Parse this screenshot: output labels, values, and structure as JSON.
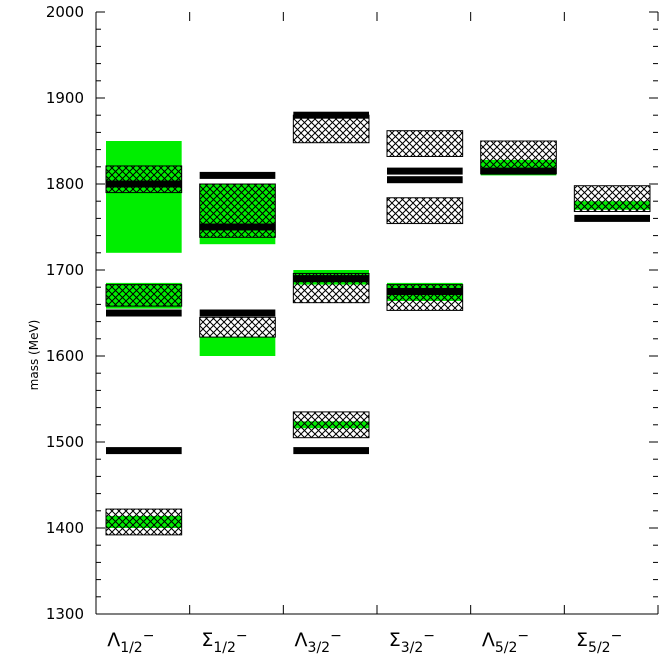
{
  "chart_data": {
    "type": "table",
    "ylabel": "mass (MeV)",
    "ylim": [
      1300,
      2000
    ],
    "y_ticks": [
      "1300",
      "1400",
      "1500",
      "1600",
      "1700",
      "1800",
      "1900",
      "2000"
    ],
    "categories": [
      {
        "main": "Λ",
        "sub": "1/2",
        "sup": "−"
      },
      {
        "main": "Σ",
        "sub": "1/2",
        "sup": "−"
      },
      {
        "main": "Λ",
        "sub": "3/2",
        "sup": "−"
      },
      {
        "main": "Σ",
        "sub": "3/2",
        "sup": "−"
      },
      {
        "main": "Λ",
        "sub": "5/2",
        "sup": "−"
      },
      {
        "main": "Σ",
        "sub": "5/2",
        "sup": "−"
      }
    ],
    "green_bands": [
      {
        "category": 0,
        "low": 1720,
        "high": 1850
      },
      {
        "category": 0,
        "low": 1655,
        "high": 1685
      },
      {
        "category": 0,
        "low": 1400,
        "high": 1414
      },
      {
        "category": 1,
        "low": 1730,
        "high": 1800
      },
      {
        "category": 1,
        "low": 1600,
        "high": 1622
      },
      {
        "category": 2,
        "low": 1683,
        "high": 1700
      },
      {
        "category": 2,
        "low": 1516,
        "high": 1524
      },
      {
        "category": 3,
        "low": 1664,
        "high": 1685
      },
      {
        "category": 4,
        "low": 1810,
        "high": 1828
      },
      {
        "category": 5,
        "low": 1770,
        "high": 1780
      }
    ],
    "hatched_boxes": [
      {
        "category": 0,
        "low": 1790,
        "high": 1821
      },
      {
        "category": 0,
        "low": 1658,
        "high": 1683
      },
      {
        "category": 0,
        "low": 1392,
        "high": 1422
      },
      {
        "category": 1,
        "low": 1738,
        "high": 1800
      },
      {
        "category": 1,
        "low": 1622,
        "high": 1645
      },
      {
        "category": 2,
        "low": 1848,
        "high": 1880
      },
      {
        "category": 2,
        "low": 1662,
        "high": 1696
      },
      {
        "category": 2,
        "low": 1505,
        "high": 1535
      },
      {
        "category": 3,
        "low": 1832,
        "high": 1862
      },
      {
        "category": 3,
        "low": 1754,
        "high": 1784
      },
      {
        "category": 3,
        "low": 1653,
        "high": 1683
      },
      {
        "category": 4,
        "low": 1812,
        "high": 1850
      },
      {
        "category": 5,
        "low": 1768,
        "high": 1798
      }
    ],
    "experimental_masses": [
      {
        "category": 0,
        "mass": 1800
      },
      {
        "category": 0,
        "mass": 1650
      },
      {
        "category": 0,
        "mass": 1490
      },
      {
        "category": 1,
        "mass": 1810
      },
      {
        "category": 1,
        "mass": 1750
      },
      {
        "category": 1,
        "mass": 1650
      },
      {
        "category": 2,
        "mass": 1880
      },
      {
        "category": 2,
        "mass": 1690
      },
      {
        "category": 2,
        "mass": 1490
      },
      {
        "category": 3,
        "mass": 1815
      },
      {
        "category": 3,
        "mass": 1805
      },
      {
        "category": 3,
        "mass": 1675
      },
      {
        "category": 4,
        "mass": 1815
      },
      {
        "category": 5,
        "mass": 1760
      }
    ]
  }
}
